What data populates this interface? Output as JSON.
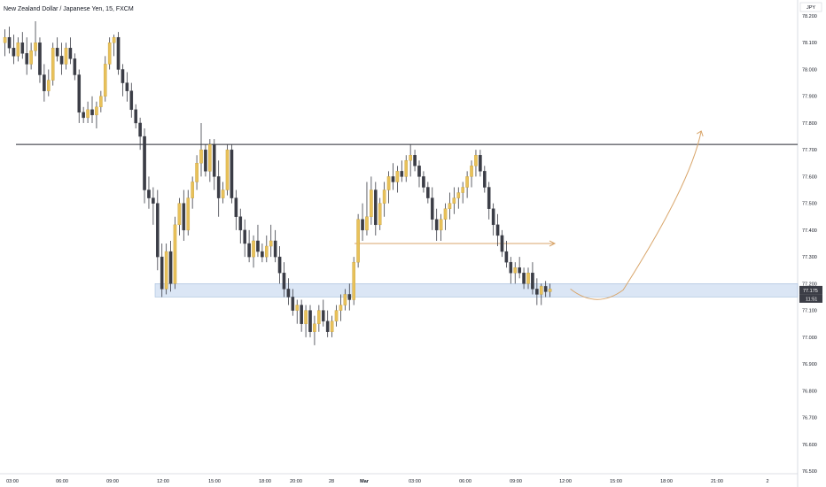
{
  "chart_data": {
    "type": "candlestick",
    "title": "New Zealand Dollar / Japanese Yen, 15, FXCM",
    "currency": "JPY",
    "ylim": [
      76.5,
      78.25
    ],
    "y_ticks": [
      "78.200",
      "78.100",
      "78.000",
      "77.900",
      "77.800",
      "77.700",
      "77.600",
      "77.500",
      "77.400",
      "77.300",
      "77.200",
      "77.100",
      "77.000",
      "76.900",
      "76.800",
      "76.700",
      "76.600",
      "76.500"
    ],
    "x_ticks": [
      "03:00",
      "06:00",
      "09:00",
      "12:00",
      "15:00",
      "18:00",
      "20:00",
      "28",
      "Mar",
      "03:00",
      "06:00",
      "09:00",
      "12:00",
      "15:00",
      "18:00",
      "21:00",
      "2"
    ],
    "x_ticks_bold": [
      "Mar"
    ],
    "last_price": "77.175",
    "countdown": "11:51",
    "colors": {
      "up": "#e8c15a",
      "down": "#3b3d46",
      "wick": "#3b3d46",
      "resistance_line": "#262930",
      "zone_fill": "#dbe6f5",
      "zone_border": "#a5bedc",
      "projection": "#d9a66b",
      "price_label_bg": "#3b3d46"
    },
    "resistance_level": 77.72,
    "support_zone": [
      77.15,
      77.2
    ],
    "mid_level": 77.35,
    "projection_path": [
      {
        "t": 130,
        "p": 77.18
      },
      {
        "t": 136,
        "p": 77.15
      },
      {
        "t": 160,
        "p": 77.77
      }
    ],
    "ohlc": [
      [
        78.1,
        78.15,
        78.05,
        78.12
      ],
      [
        78.12,
        78.16,
        78.06,
        78.08
      ],
      [
        78.08,
        78.13,
        78.02,
        78.05
      ],
      [
        78.05,
        78.12,
        78.03,
        78.1
      ],
      [
        78.1,
        78.14,
        78.04,
        78.06
      ],
      [
        78.06,
        78.12,
        77.98,
        78.02
      ],
      [
        78.02,
        78.1,
        78.0,
        78.07
      ],
      [
        78.07,
        78.18,
        78.05,
        78.1
      ],
      [
        78.1,
        78.12,
        77.95,
        77.98
      ],
      [
        77.98,
        78.02,
        77.88,
        77.92
      ],
      [
        77.92,
        78.0,
        77.9,
        77.96
      ],
      [
        77.96,
        78.1,
        77.94,
        78.08
      ],
      [
        78.08,
        78.12,
        78.03,
        78.05
      ],
      [
        78.05,
        78.1,
        77.98,
        78.02
      ],
      [
        78.02,
        78.1,
        78.0,
        78.08
      ],
      [
        78.08,
        78.12,
        78.02,
        78.04
      ],
      [
        78.04,
        78.06,
        77.96,
        77.98
      ],
      [
        77.98,
        78.0,
        77.8,
        77.84
      ],
      [
        77.84,
        77.86,
        77.8,
        77.82
      ],
      [
        77.82,
        77.88,
        77.8,
        77.85
      ],
      [
        77.85,
        77.9,
        77.8,
        77.83
      ],
      [
        77.83,
        77.88,
        77.78,
        77.86
      ],
      [
        77.86,
        77.92,
        77.84,
        77.9
      ],
      [
        77.9,
        78.05,
        77.88,
        78.02
      ],
      [
        78.02,
        78.12,
        78.0,
        78.1
      ],
      [
        78.1,
        78.13,
        78.05,
        78.12
      ],
      [
        78.12,
        78.14,
        77.98,
        78.0
      ],
      [
        78.0,
        78.02,
        77.9,
        77.95
      ],
      [
        77.95,
        77.99,
        77.88,
        77.92
      ],
      [
        77.92,
        77.95,
        77.82,
        77.85
      ],
      [
        77.85,
        77.87,
        77.78,
        77.8
      ],
      [
        77.8,
        77.82,
        77.7,
        77.75
      ],
      [
        77.75,
        77.78,
        77.5,
        77.55
      ],
      [
        77.55,
        77.6,
        77.48,
        77.52
      ],
      [
        77.52,
        77.56,
        77.42,
        77.5
      ],
      [
        77.5,
        77.55,
        77.25,
        77.3
      ],
      [
        77.3,
        77.35,
        77.15,
        77.18
      ],
      [
        77.18,
        77.35,
        77.16,
        77.32
      ],
      [
        77.32,
        77.36,
        77.17,
        77.2
      ],
      [
        77.2,
        77.45,
        77.18,
        77.42
      ],
      [
        77.42,
        77.52,
        77.38,
        77.5
      ],
      [
        77.5,
        77.55,
        77.36,
        77.4
      ],
      [
        77.4,
        77.55,
        77.38,
        77.52
      ],
      [
        77.52,
        77.6,
        77.48,
        77.58
      ],
      [
        77.58,
        77.68,
        77.55,
        77.65
      ],
      [
        77.65,
        77.8,
        77.6,
        77.7
      ],
      [
        77.7,
        77.72,
        77.6,
        77.62
      ],
      [
        77.62,
        77.74,
        77.58,
        77.72
      ],
      [
        77.72,
        77.74,
        77.55,
        77.6
      ],
      [
        77.6,
        77.66,
        77.45,
        77.52
      ],
      [
        77.52,
        77.58,
        77.5,
        77.55
      ],
      [
        77.55,
        77.72,
        77.53,
        77.7
      ],
      [
        77.7,
        77.72,
        77.5,
        77.52
      ],
      [
        77.52,
        77.55,
        77.4,
        77.45
      ],
      [
        77.45,
        77.48,
        77.35,
        77.4
      ],
      [
        77.4,
        77.44,
        77.3,
        77.35
      ],
      [
        77.35,
        77.4,
        77.28,
        77.3
      ],
      [
        77.3,
        77.38,
        77.26,
        77.36
      ],
      [
        77.36,
        77.42,
        77.3,
        77.32
      ],
      [
        77.32,
        77.35,
        77.28,
        77.3
      ],
      [
        77.3,
        77.38,
        77.28,
        77.34
      ],
      [
        77.34,
        77.42,
        77.3,
        77.36
      ],
      [
        77.36,
        77.4,
        77.28,
        77.3
      ],
      [
        77.3,
        77.34,
        77.2,
        77.24
      ],
      [
        77.24,
        77.28,
        77.15,
        77.18
      ],
      [
        77.18,
        77.22,
        77.12,
        77.15
      ],
      [
        77.15,
        77.18,
        77.08,
        77.1
      ],
      [
        77.1,
        77.14,
        77.05,
        77.12
      ],
      [
        77.12,
        77.14,
        77.02,
        77.05
      ],
      [
        77.05,
        77.12,
        77.0,
        77.1
      ],
      [
        77.1,
        77.12,
        77.0,
        77.02
      ],
      [
        77.02,
        77.08,
        76.97,
        77.05
      ],
      [
        77.05,
        77.12,
        77.02,
        77.1
      ],
      [
        77.1,
        77.14,
        77.04,
        77.06
      ],
      [
        77.06,
        77.1,
        77.0,
        77.02
      ],
      [
        77.02,
        77.08,
        77.0,
        77.06
      ],
      [
        77.06,
        77.12,
        77.04,
        77.1
      ],
      [
        77.1,
        77.16,
        77.06,
        77.12
      ],
      [
        77.12,
        77.18,
        77.1,
        77.16
      ],
      [
        77.16,
        77.2,
        77.1,
        77.14
      ],
      [
        77.14,
        77.3,
        77.12,
        77.28
      ],
      [
        77.28,
        77.46,
        77.26,
        77.44
      ],
      [
        77.44,
        77.5,
        77.36,
        77.4
      ],
      [
        77.4,
        77.58,
        77.38,
        77.45
      ],
      [
        77.45,
        77.6,
        77.42,
        77.55
      ],
      [
        77.55,
        77.58,
        77.38,
        77.42
      ],
      [
        77.42,
        77.52,
        77.4,
        77.5
      ],
      [
        77.5,
        77.58,
        77.45,
        77.55
      ],
      [
        77.55,
        77.62,
        77.5,
        77.6
      ],
      [
        77.6,
        77.65,
        77.55,
        77.58
      ],
      [
        77.58,
        77.64,
        77.54,
        77.62
      ],
      [
        77.62,
        77.66,
        77.58,
        77.6
      ],
      [
        77.6,
        77.68,
        77.58,
        77.66
      ],
      [
        77.66,
        77.72,
        77.6,
        77.68
      ],
      [
        77.68,
        77.7,
        77.62,
        77.64
      ],
      [
        77.64,
        77.66,
        77.56,
        77.6
      ],
      [
        77.6,
        77.62,
        77.54,
        77.56
      ],
      [
        77.56,
        77.58,
        77.5,
        77.52
      ],
      [
        77.52,
        77.56,
        77.4,
        77.44
      ],
      [
        77.44,
        77.48,
        77.36,
        77.4
      ],
      [
        77.4,
        77.46,
        77.36,
        77.44
      ],
      [
        77.44,
        77.5,
        77.4,
        77.48
      ],
      [
        77.48,
        77.54,
        77.44,
        77.5
      ],
      [
        77.5,
        77.56,
        77.46,
        77.52
      ],
      [
        77.52,
        77.56,
        77.48,
        77.54
      ],
      [
        77.54,
        77.58,
        77.5,
        77.56
      ],
      [
        77.56,
        77.62,
        77.52,
        77.6
      ],
      [
        77.6,
        77.66,
        77.56,
        77.64
      ],
      [
        77.64,
        77.7,
        77.6,
        77.68
      ],
      [
        77.68,
        77.7,
        77.6,
        77.62
      ],
      [
        77.62,
        77.64,
        77.54,
        77.56
      ],
      [
        77.56,
        77.58,
        77.44,
        77.48
      ],
      [
        77.48,
        77.5,
        77.38,
        77.42
      ],
      [
        77.42,
        77.46,
        77.34,
        77.38
      ],
      [
        77.38,
        77.4,
        77.3,
        77.32
      ],
      [
        77.32,
        77.36,
        77.26,
        77.28
      ],
      [
        77.28,
        77.3,
        77.2,
        77.24
      ],
      [
        77.24,
        77.28,
        77.2,
        77.26
      ],
      [
        77.26,
        77.3,
        77.22,
        77.24
      ],
      [
        77.24,
        77.26,
        77.18,
        77.2
      ],
      [
        77.2,
        77.26,
        77.18,
        77.24
      ],
      [
        77.24,
        77.28,
        77.16,
        77.18
      ],
      [
        77.18,
        77.22,
        77.12,
        77.16
      ],
      [
        77.16,
        77.2,
        77.12,
        77.19
      ],
      [
        77.19,
        77.21,
        77.15,
        77.17
      ],
      [
        77.17,
        77.2,
        77.15,
        77.18
      ]
    ]
  }
}
